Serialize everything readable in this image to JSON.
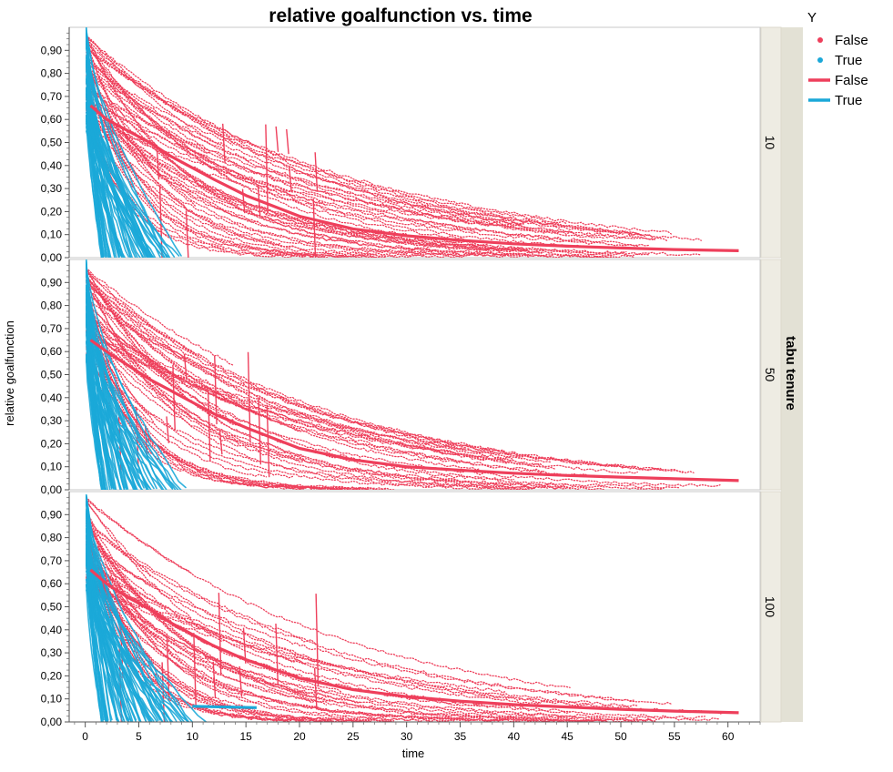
{
  "chart_data": {
    "type": "scatter",
    "title": "relative goalfunction vs. time",
    "xlabel": "time",
    "ylabel": "relative goalfunction",
    "xlim": [
      -1.5,
      63
    ],
    "ylim": [
      0,
      1
    ],
    "x_ticks": [
      "0",
      "5",
      "10",
      "15",
      "20",
      "25",
      "30",
      "35",
      "40",
      "45",
      "50",
      "55",
      "60"
    ],
    "y_ticks": [
      "0,00",
      "0,10",
      "0,20",
      "0,30",
      "0,40",
      "0,50",
      "0,60",
      "0,70",
      "0,80",
      "0,90"
    ],
    "facet_title": "tabu tenure",
    "legend_title": "Y",
    "legend": [
      {
        "label": "False",
        "kind": "point",
        "color": "#ee3f5b"
      },
      {
        "label": "True",
        "kind": "point",
        "color": "#1ba8d8"
      },
      {
        "label": "False",
        "kind": "line",
        "color": "#ee3f5b"
      },
      {
        "label": "True",
        "kind": "line",
        "color": "#1ba8d8"
      }
    ],
    "colors": {
      "False": "#ee3f5b",
      "True": "#1ba8d8"
    },
    "panels": [
      {
        "label": "10",
        "fit_false": {
          "x": [
            0.5,
            2,
            4,
            6,
            8,
            10,
            12,
            15,
            20,
            25,
            30,
            35,
            40,
            45,
            50,
            55,
            61
          ],
          "y": [
            0.66,
            0.6,
            0.55,
            0.5,
            0.44,
            0.39,
            0.34,
            0.27,
            0.18,
            0.125,
            0.095,
            0.075,
            0.06,
            0.05,
            0.042,
            0.035,
            0.03
          ]
        },
        "fit_true": {
          "x": [],
          "y": []
        }
      },
      {
        "label": "50",
        "fit_false": {
          "x": [
            0.5,
            2,
            4,
            6,
            8,
            10,
            12,
            15,
            20,
            25,
            30,
            35,
            40,
            45,
            50,
            55,
            61
          ],
          "y": [
            0.65,
            0.6,
            0.54,
            0.48,
            0.43,
            0.38,
            0.33,
            0.27,
            0.18,
            0.13,
            0.1,
            0.085,
            0.072,
            0.062,
            0.055,
            0.048,
            0.04
          ]
        },
        "fit_true": {
          "x": [],
          "y": []
        }
      },
      {
        "label": "100",
        "fit_false": {
          "x": [
            0.5,
            2,
            4,
            6,
            8,
            10,
            12,
            15,
            20,
            25,
            30,
            35,
            40,
            45,
            50,
            55,
            61
          ],
          "y": [
            0.66,
            0.6,
            0.54,
            0.49,
            0.43,
            0.38,
            0.33,
            0.27,
            0.19,
            0.14,
            0.11,
            0.09,
            0.075,
            0.065,
            0.055,
            0.047,
            0.04
          ]
        },
        "fit_true": {
          "x": [
            10,
            12,
            14,
            16
          ],
          "y": [
            0.068,
            0.066,
            0.064,
            0.062
          ]
        }
      }
    ]
  }
}
